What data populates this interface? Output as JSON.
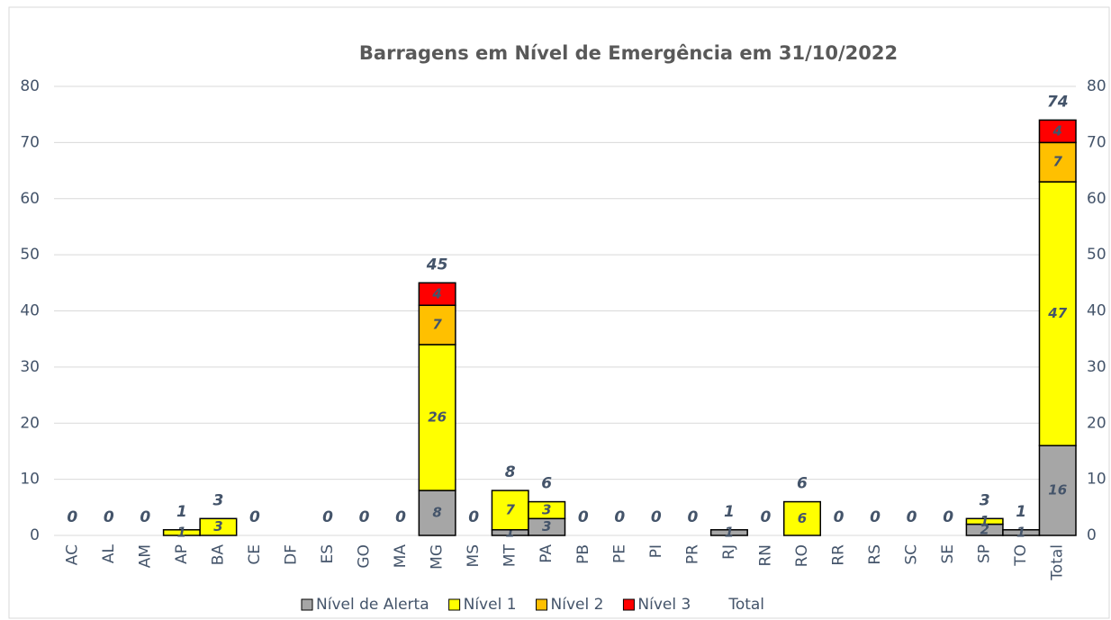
{
  "chart_data": {
    "type": "stacked_bar",
    "title": "Barragens em Nível de Emergência em  31/10/2022",
    "categories": [
      "AC",
      "AL",
      "AM",
      "AP",
      "BA",
      "CE",
      "DF",
      "ES",
      "GO",
      "MA",
      "MG",
      "MS",
      "MT",
      "PA",
      "PB",
      "PE",
      "PI",
      "PR",
      "RJ",
      "RN",
      "RO",
      "RR",
      "RS",
      "SC",
      "SE",
      "SP",
      "TO",
      "Total"
    ],
    "series": [
      {
        "name": "Nível de Alerta",
        "color": "#a6a6a6",
        "values": [
          0,
          0,
          0,
          0,
          0,
          0,
          0,
          0,
          0,
          0,
          8,
          0,
          1,
          3,
          0,
          0,
          0,
          0,
          1,
          0,
          0,
          0,
          0,
          0,
          0,
          2,
          1,
          16
        ]
      },
      {
        "name": "Nível 1",
        "color": "#ffff00",
        "values": [
          0,
          0,
          0,
          1,
          3,
          0,
          0,
          0,
          0,
          0,
          26,
          0,
          7,
          3,
          0,
          0,
          0,
          0,
          0,
          0,
          6,
          0,
          0,
          0,
          0,
          1,
          0,
          47
        ]
      },
      {
        "name": "Nível 2",
        "color": "#ffc000",
        "values": [
          0,
          0,
          0,
          0,
          0,
          0,
          0,
          0,
          0,
          0,
          7,
          0,
          0,
          0,
          0,
          0,
          0,
          0,
          0,
          0,
          0,
          0,
          0,
          0,
          0,
          0,
          0,
          7
        ]
      },
      {
        "name": "Nível 3",
        "color": "#ff0000",
        "values": [
          0,
          0,
          0,
          0,
          0,
          0,
          0,
          0,
          0,
          0,
          4,
          0,
          0,
          0,
          0,
          0,
          0,
          0,
          0,
          0,
          0,
          0,
          0,
          0,
          0,
          0,
          0,
          4
        ]
      }
    ],
    "totals": {
      "name": "Total",
      "values": [
        0,
        0,
        0,
        1,
        3,
        0,
        null,
        0,
        0,
        0,
        45,
        0,
        8,
        6,
        0,
        0,
        0,
        0,
        1,
        0,
        6,
        0,
        0,
        0,
        0,
        3,
        1,
        74
      ]
    },
    "ylim": [
      0,
      80
    ],
    "yticks": [
      0,
      10,
      20,
      30,
      40,
      50,
      60,
      70,
      80
    ],
    "y2lim": [
      0,
      80
    ],
    "y2ticks": [
      0,
      10,
      20,
      30,
      40,
      50,
      60,
      70,
      80
    ],
    "grid": true,
    "legend": "bottom"
  }
}
